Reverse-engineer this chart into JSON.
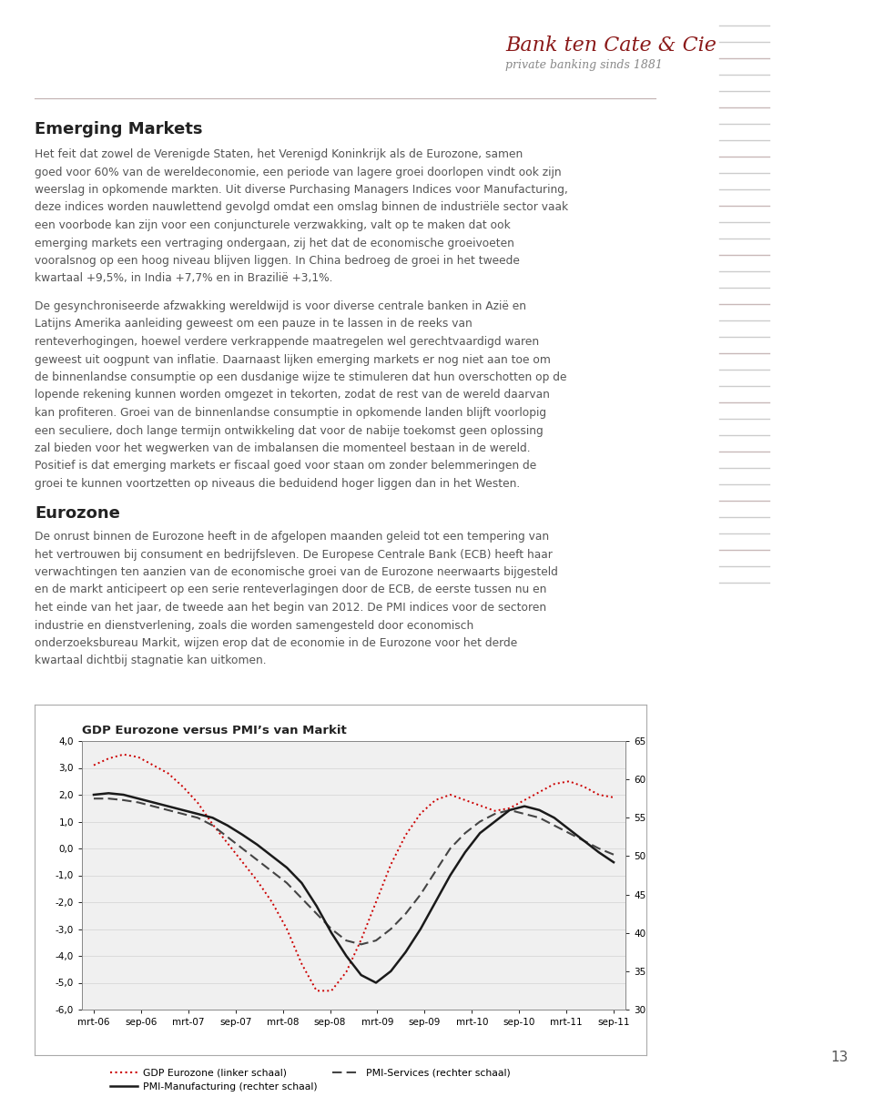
{
  "title": "GDP Eurozone versus PMI’s van Markit",
  "x_labels": [
    "mrt-06",
    "sep-06",
    "mrt-07",
    "sep-07",
    "mrt-08",
    "sep-08",
    "mrt-09",
    "sep-09",
    "mrt-10",
    "sep-10",
    "mrt-11",
    "sep-11"
  ],
  "gdp_eurozone": [
    3.1,
    3.35,
    3.5,
    3.4,
    3.1,
    2.8,
    2.3,
    1.7,
    0.9,
    0.2,
    -0.5,
    -1.2,
    -2.0,
    -3.0,
    -4.3,
    -5.3,
    -5.3,
    -4.6,
    -3.4,
    -2.0,
    -0.6,
    0.5,
    1.3,
    1.8,
    2.0,
    1.8,
    1.6,
    1.4,
    1.5,
    1.8,
    2.1,
    2.4,
    2.5,
    2.3,
    2.0,
    1.9
  ],
  "pmi_manufacturing": [
    58.0,
    58.2,
    58.0,
    57.5,
    57.0,
    56.5,
    56.0,
    55.5,
    55.0,
    54.0,
    52.8,
    51.5,
    50.0,
    48.5,
    46.5,
    43.5,
    40.0,
    37.0,
    34.5,
    33.5,
    35.0,
    37.5,
    40.5,
    44.0,
    47.5,
    50.5,
    53.0,
    54.5,
    56.0,
    56.5,
    56.0,
    55.0,
    53.5,
    52.0,
    50.5,
    49.2
  ],
  "pmi_services": [
    57.5,
    57.5,
    57.3,
    57.0,
    56.5,
    56.0,
    55.5,
    55.0,
    54.0,
    52.5,
    51.0,
    49.5,
    48.0,
    46.5,
    44.5,
    42.5,
    40.5,
    39.0,
    38.5,
    39.0,
    40.5,
    42.5,
    45.0,
    48.0,
    51.0,
    53.0,
    54.5,
    55.5,
    56.0,
    55.5,
    55.0,
    54.0,
    53.0,
    52.0,
    51.0,
    50.2
  ],
  "ylim_left": [
    -6.0,
    4.0
  ],
  "ylim_right": [
    30,
    65
  ],
  "yticks_left": [
    4.0,
    3.0,
    2.0,
    1.0,
    0.0,
    -1.0,
    -2.0,
    -3.0,
    -4.0,
    -5.0,
    -6.0
  ],
  "ytick_labels_left": [
    "4,0",
    "3,0",
    "2,0",
    "1,0",
    "0,0",
    "-1,0",
    "-2,0",
    "-3,0",
    "-4,0",
    "-5,0",
    "-6,0"
  ],
  "yticks_right": [
    65,
    60,
    55,
    50,
    45,
    40,
    35,
    30
  ],
  "ytick_labels_right": [
    "65",
    "60",
    "55",
    "50",
    "45",
    "40",
    "35",
    "30"
  ],
  "background_color": "#ffffff",
  "chart_bg": "#f0f0f0",
  "grid_color": "#d8d8d8",
  "gdp_color": "#cc0000",
  "pmi_mfg_color": "#1a1a1a",
  "pmi_svc_color": "#444444",
  "legend_gdp": "GDP Eurozone (linker schaal)",
  "legend_mfg": "PMI-Manufacturing (rechter schaal)",
  "legend_svc": "PMI-Services (rechter schaal)",
  "text_color": "#555555",
  "title_color": "#222222",
  "header_red": "#8b1a1a",
  "subheader_color": "#888888",
  "deco_line_color": "#b0b0b0",
  "page_num": "13",
  "bank_name": "Bank ten Cate & Cie",
  "bank_sub": "private banking sinds 1881",
  "section1_title": "Emerging Markets",
  "para1": "Het feit dat zowel de Verenigde Staten, het Verenigd Koninkrijk als de Eurozone, samen goed voor 60% van de wereldeconomie, een periode van lagere groei doorlopen vindt ook zijn weerslag in opkomende markten. Uit diverse Purchasing Managers Indices voor Manufacturing, deze indices worden nauwlettend gevolgd omdat een omslag binnen de industriële sector vaak een voorbode kan zijn voor een conjuncturele verzwakking, valt op te maken dat ook emerging markets een vertraging ondergaan, zij het dat de economische groeivoeten vooralsnog op een hoog niveau blijven liggen. In China bedroeg de groei in het tweede kwartaal +9,5%, in India +7,7% en in Brazilië +3,1%.",
  "para2": "De gesynchroniseerde afzwakking wereldwijd is voor diverse centrale banken in Azië en Latijns Amerika aanleiding geweest om een pauze in te lassen in de reeks van renteverhogingen, hoewel verdere verkrappende maatregelen wel gerechtvaardigd waren geweest uit oogpunt van inflatie. Daarnaast lijken emerging markets er nog niet aan toe om de binnenlandse consumptie op een dusdanige wijze te stimuleren dat hun overschotten op de lopende rekening kunnen worden omgezet in tekorten, zodat de rest van de wereld daarvan kan profiteren. Groei van de binnenlandse consumptie in opkomende landen blijft voorlopig een seculiere, doch lange termijn ontwikkeling dat voor de nabije toekomst geen oplossing zal bieden voor het wegwerken van de imbalansen die momenteel bestaan in de wereld. Positief is dat emerging markets er fiscaal goed voor staan om zonder belemmeringen de groei te kunnen voortzetten op niveaus die beduidend hoger liggen dan in het Westen.",
  "section2_title": "Eurozone",
  "para3": "De onrust binnen de Eurozone heeft in de afgelopen maanden geleid tot een tempering van het vertrouwen bij consument en bedrijfsleven. De Europese Centrale Bank (ECB) heeft haar verwachtingen ten aanzien van de economische groei van de Eurozone neerwaarts bijgesteld en de markt anticipeert op een serie renteverlagingen door de ECB, de eerste tussen nu en het einde van het jaar, de tweede aan het begin van 2012. De PMI indices voor de sectoren industrie en dienstverlening, zoals die worden samengesteld door economisch onderzoeksbureau Markit, wijzen erop dat de economie in de Eurozone voor het derde kwartaal dichtbij stagnatie kan uitkomen."
}
